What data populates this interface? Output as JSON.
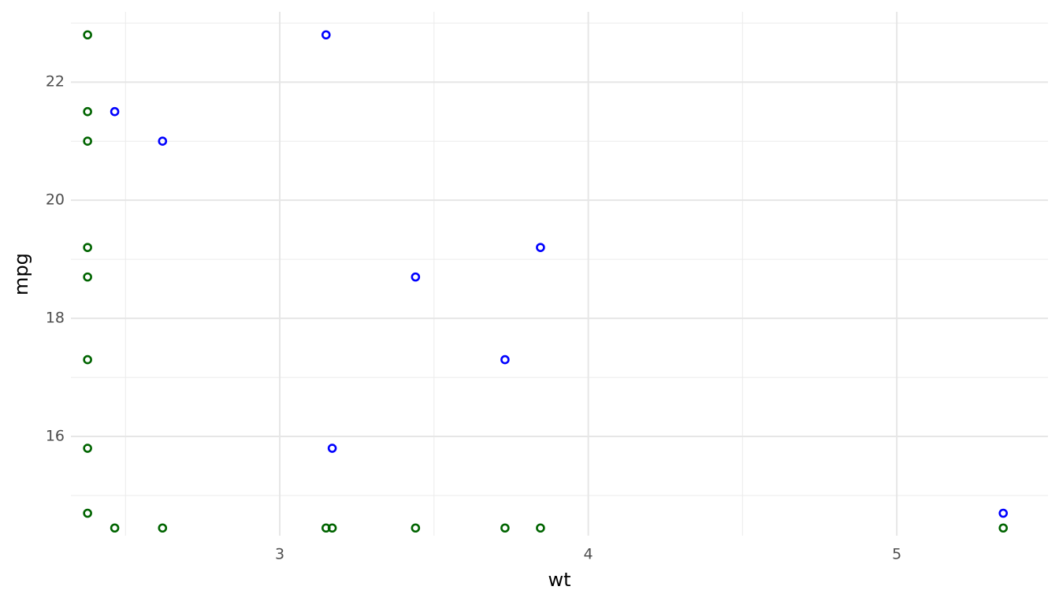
{
  "chart_data": {
    "type": "scatter",
    "x_label": "wt",
    "y_label": "mpg",
    "xlim": [
      2.323,
      5.49
    ],
    "ylim": [
      14.32,
      23.19
    ],
    "xticks": [
      3,
      4,
      5
    ],
    "yticks": [
      16,
      18,
      20,
      22
    ],
    "x_minor_ticks": [
      2.5,
      3.5,
      4.5
    ],
    "y_minor_ticks": [
      15,
      17,
      19,
      21,
      23
    ],
    "grid": true,
    "series": [
      {
        "color": "#0000ff",
        "x": [
          2.465,
          2.62,
          3.15,
          3.17,
          3.44,
          3.73,
          3.845,
          5.345
        ],
        "values": [
          21.5,
          21.0,
          22.8,
          15.8,
          18.7,
          17.3,
          19.2,
          14.7
        ]
      },
      {
        "color": "#006400",
        "x": [
          2.377,
          2.377,
          2.377,
          2.377,
          2.377,
          2.377,
          2.377,
          2.377,
          2.465,
          2.62,
          3.15,
          3.17,
          3.44,
          3.73,
          3.845,
          5.345
        ],
        "values": [
          22.8,
          21.5,
          21.0,
          19.2,
          18.7,
          17.3,
          15.8,
          14.7,
          14.45,
          14.45,
          14.45,
          14.45,
          14.45,
          14.45,
          14.45,
          14.45
        ]
      }
    ]
  }
}
